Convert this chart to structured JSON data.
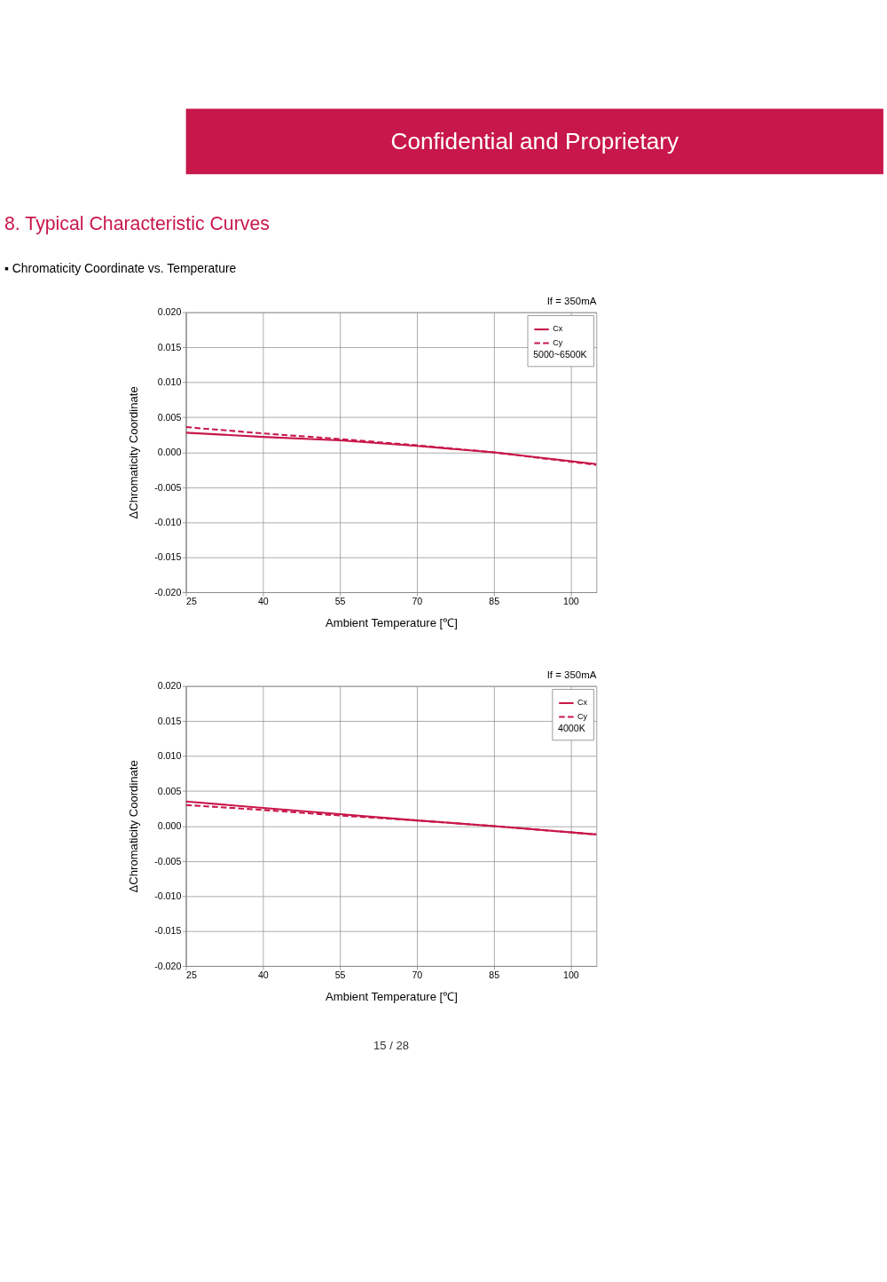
{
  "chart_data": [
    {
      "type": "line",
      "title": "8. Typical Characteristic Curves",
      "subtitle": "▪ Chromaticity Coordinate vs. Temperature",
      "xlabel": "Ambient Temperature [℃]",
      "ylabel": "ΔChromaticity Coordinate",
      "legend_title": "5000~6500K",
      "annotations": [
        "If = 350mA",
        "Confidential and Proprietary"
      ],
      "x": [
        25,
        40,
        55,
        70,
        85,
        105
      ],
      "series": [
        {
          "name": "Cx",
          "color": "#c8174a",
          "line_style": "solid",
          "values": [
            0.0028,
            0.0022,
            0.0017,
            0.0009,
            0.0,
            -0.0017
          ]
        },
        {
          "name": "Cy",
          "color": "#c8174a",
          "line_style": "dashed",
          "values": [
            0.0036,
            0.0027,
            0.0019,
            0.001,
            0.0,
            -0.0018
          ]
        }
      ],
      "xlim": [
        25,
        105
      ],
      "xticks": [
        25,
        40,
        55,
        70,
        85,
        100
      ],
      "ylim": [
        -0.02,
        0.02
      ],
      "yticks": [
        {
          "value": -0.02,
          "label": "-0.020"
        },
        {
          "value": -0.015,
          "label": "-0.015"
        },
        {
          "value": -0.01,
          "label": "-0.010"
        },
        {
          "value": -0.005,
          "label": "-0.005"
        },
        {
          "value": 0,
          "label": "0.000"
        },
        {
          "value": 0.005,
          "label": "0.005"
        },
        {
          "value": 0.01,
          "label": "0.010"
        },
        {
          "value": 0.015,
          "label": "0.015"
        },
        {
          "value": 0.02,
          "label": "0.020"
        }
      ],
      "grid": true,
      "legend": "top right"
    },
    {
      "type": "line",
      "xlabel": "Ambient Temperature [℃]",
      "ylabel": "ΔChromaticity Coordinate",
      "legend_title": "4000K",
      "annotations": [
        "If = 350mA",
        "15 / 28"
      ],
      "x": [
        25,
        40,
        55,
        70,
        85,
        105
      ],
      "series": [
        {
          "name": "Cx",
          "color": "#c8174a",
          "line_style": "solid",
          "values": [
            0.0035,
            0.0026,
            0.0017,
            0.0008,
            0.0,
            -0.0012
          ]
        },
        {
          "name": "Cy",
          "color": "#c8174a",
          "line_style": "dashed",
          "values": [
            0.003,
            0.0023,
            0.0015,
            0.0008,
            0.0,
            -0.0012
          ]
        }
      ],
      "xlim": [
        25,
        105
      ],
      "xticks": [
        25,
        40,
        55,
        70,
        85,
        100
      ],
      "ylim": [
        -0.02,
        0.02
      ],
      "yticks": [
        {
          "value": -0.02,
          "label": "-0.020"
        },
        {
          "value": -0.015,
          "label": "-0.015"
        },
        {
          "value": -0.01,
          "label": "-0.010"
        },
        {
          "value": -0.005,
          "label": "-0.005"
        },
        {
          "value": 0,
          "label": "0.000"
        },
        {
          "value": 0.005,
          "label": "0.005"
        },
        {
          "value": 0.01,
          "label": "0.010"
        },
        {
          "value": 0.015,
          "label": "0.015"
        },
        {
          "value": 0.02,
          "label": "0.020"
        }
      ],
      "grid": true,
      "legend": "top right"
    }
  ]
}
